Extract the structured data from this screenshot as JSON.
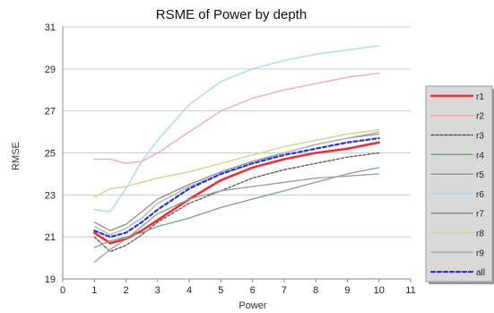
{
  "chart_data": {
    "type": "line",
    "title": "RSME of Power by depth",
    "xlabel": "Power",
    "ylabel": "RMSE",
    "xlim": [
      0,
      11
    ],
    "ylim": [
      19,
      31
    ],
    "xticks": [
      0,
      1,
      2,
      3,
      4,
      5,
      6,
      7,
      8,
      9,
      10,
      11
    ],
    "yticks": [
      19,
      21,
      23,
      25,
      27,
      29,
      31
    ],
    "grid": "horizontal",
    "legend_position": "right",
    "x": [
      1,
      1.5,
      2,
      2.5,
      3,
      4,
      5,
      6,
      7,
      8,
      9,
      10
    ],
    "series": [
      {
        "name": "r1",
        "color": "#e8313b",
        "width": 2.6,
        "dash": "",
        "values": [
          21.2,
          20.7,
          20.9,
          21.3,
          21.8,
          22.8,
          23.7,
          24.3,
          24.7,
          25.0,
          25.2,
          25.5
        ]
      },
      {
        "name": "r2",
        "color": "#f4a6a9",
        "width": 1.3,
        "dash": "",
        "values": [
          24.7,
          24.7,
          24.5,
          24.6,
          25.0,
          26.0,
          27.0,
          27.6,
          28.0,
          28.3,
          28.6,
          28.8
        ]
      },
      {
        "name": "r3",
        "color": "#555555",
        "width": 1.3,
        "dash": "3,2",
        "values": [
          21.0,
          20.3,
          20.6,
          21.1,
          21.7,
          22.6,
          23.2,
          23.8,
          24.2,
          24.5,
          24.8,
          25.0
        ]
      },
      {
        "name": "r4",
        "color": "#7aa57a",
        "width": 1.3,
        "dash": "",
        "values": [
          20.5,
          20.8,
          21.0,
          21.2,
          21.5,
          21.9,
          22.4,
          22.8,
          23.2,
          23.6,
          24.0,
          24.3
        ]
      },
      {
        "name": "r5",
        "color": "#9a9a9a",
        "width": 1.3,
        "dash": "",
        "values": [
          19.8,
          20.4,
          20.9,
          21.5,
          22.1,
          22.8,
          23.2,
          23.4,
          23.6,
          23.8,
          23.9,
          24.0
        ]
      },
      {
        "name": "r6",
        "color": "#a8d8f5",
        "width": 1.4,
        "dash": "",
        "values": [
          22.3,
          22.2,
          23.3,
          24.6,
          25.6,
          27.3,
          28.4,
          29.0,
          29.4,
          29.7,
          29.9,
          30.1
        ]
      },
      {
        "name": "r7",
        "color": "#8c8c8c",
        "width": 1.3,
        "dash": "",
        "values": [
          21.7,
          21.3,
          21.6,
          22.2,
          22.8,
          23.5,
          24.1,
          24.6,
          25.0,
          25.4,
          25.7,
          25.9
        ]
      },
      {
        "name": "r8",
        "color": "#c7d98a",
        "width": 1.4,
        "dash": "",
        "values": [
          22.9,
          23.3,
          23.4,
          23.6,
          23.8,
          24.1,
          24.5,
          24.9,
          25.3,
          25.6,
          25.9,
          26.1
        ]
      },
      {
        "name": "r9",
        "color": "#b0b0b0",
        "width": 1.3,
        "dash": "",
        "values": [
          21.5,
          21.1,
          21.4,
          21.9,
          22.6,
          23.4,
          24.0,
          24.5,
          25.0,
          25.4,
          25.7,
          26.0
        ]
      },
      {
        "name": "all",
        "color": "#2233dd",
        "width": 2.2,
        "dash": "4,3",
        "values": [
          21.3,
          21.0,
          21.2,
          21.7,
          22.3,
          23.3,
          24.0,
          24.5,
          24.9,
          25.2,
          25.5,
          25.7
        ]
      }
    ]
  }
}
